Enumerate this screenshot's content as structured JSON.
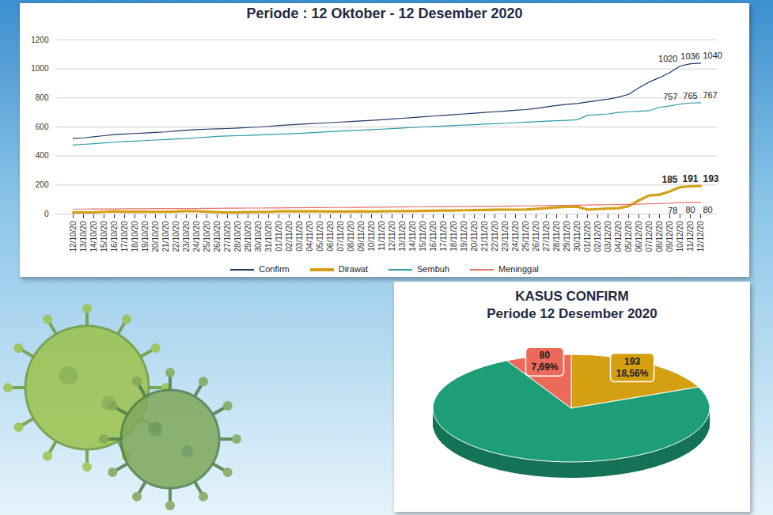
{
  "chart_data": [
    {
      "type": "line",
      "title": "Periode : 12 Oktober - 12 Desember 2020",
      "x": [
        "12/10/20",
        "13/10/20",
        "14/10/20",
        "15/10/20",
        "16/10/20",
        "17/10/20",
        "18/10/20",
        "19/10/20",
        "20/10/20",
        "21/10/20",
        "22/10/20",
        "23/10/20",
        "24/10/20",
        "25/10/20",
        "26/10/20",
        "27/10/20",
        "28/10/20",
        "29/10/20",
        "30/10/20",
        "31/10/20",
        "01/11/20",
        "02/11/20",
        "03/11/20",
        "04/11/20",
        "05/11/20",
        "06/11/20",
        "07/11/20",
        "08/11/20",
        "09/11/20",
        "10/11/20",
        "11/11/20",
        "12/11/20",
        "13/11/20",
        "14/11/20",
        "15/11/20",
        "16/11/20",
        "17/11/20",
        "18/11/20",
        "19/11/20",
        "20/11/20",
        "21/11/20",
        "22/11/20",
        "23/11/20",
        "24/11/20",
        "25/11/20",
        "26/11/20",
        "27/11/20",
        "28/11/20",
        "29/11/20",
        "30/11/20",
        "01/12/20",
        "02/12/20",
        "03/12/20",
        "04/12/20",
        "05/12/20",
        "06/12/20",
        "07/12/20",
        "08/12/20",
        "09/12/20",
        "10/12/20",
        "11/12/20",
        "12/12/20"
      ],
      "series": [
        {
          "name": "Confirm",
          "color": "#1f3864",
          "line_style": "solid",
          "values": [
            520,
            525,
            532,
            540,
            548,
            552,
            555,
            558,
            562,
            566,
            572,
            578,
            582,
            585,
            587,
            589,
            592,
            596,
            600,
            604,
            610,
            614,
            618,
            622,
            626,
            630,
            634,
            638,
            642,
            646,
            650,
            655,
            660,
            665,
            670,
            675,
            680,
            685,
            690,
            695,
            700,
            705,
            710,
            715,
            720,
            728,
            738,
            748,
            756,
            762,
            772,
            782,
            792,
            805,
            825,
            870,
            910,
            940,
            975,
            1020,
            1036,
            1040
          ]
        },
        {
          "name": "Dirawat",
          "color": "#d4a017",
          "line_style": "thick",
          "values": [
            11,
            11,
            12,
            15,
            18,
            16,
            16,
            16,
            15,
            16,
            17,
            20,
            19,
            16,
            13,
            11,
            12,
            13,
            14,
            14,
            18,
            18,
            19,
            18,
            18,
            17,
            17,
            17,
            18,
            17,
            18,
            19,
            20,
            20,
            21,
            22,
            24,
            24,
            26,
            27,
            28,
            29,
            30,
            30,
            31,
            35,
            40,
            46,
            50,
            51,
            30,
            34,
            38,
            40,
            54,
            94,
            128,
            133,
            155,
            185,
            191,
            193
          ]
        },
        {
          "name": "Sembuh",
          "color": "#2f9aa6",
          "line_style": "solid",
          "values": [
            475,
            480,
            485,
            490,
            495,
            500,
            503,
            506,
            510,
            513,
            517,
            520,
            525,
            530,
            535,
            538,
            540,
            542,
            545,
            548,
            550,
            553,
            556,
            560,
            564,
            568,
            572,
            575,
            578,
            582,
            585,
            588,
            592,
            596,
            600,
            603,
            606,
            610,
            613,
            616,
            620,
            623,
            626,
            630,
            633,
            636,
            640,
            643,
            646,
            650,
            680,
            685,
            690,
            700,
            705,
            708,
            712,
            735,
            745,
            757,
            765,
            767
          ]
        },
        {
          "name": "Meninggal",
          "color": "#e8736b",
          "line_style": "solid",
          "values": [
            34,
            34,
            35,
            35,
            35,
            36,
            36,
            36,
            37,
            37,
            38,
            38,
            38,
            39,
            39,
            40,
            40,
            41,
            41,
            42,
            42,
            43,
            43,
            44,
            44,
            45,
            45,
            46,
            46,
            47,
            47,
            48,
            48,
            49,
            49,
            50,
            50,
            51,
            51,
            52,
            52,
            53,
            54,
            55,
            56,
            57,
            58,
            59,
            60,
            61,
            62,
            63,
            64,
            65,
            66,
            68,
            70,
            72,
            75,
            78,
            80,
            80
          ]
        }
      ],
      "ylim": [
        0,
        1200
      ],
      "yticks": [
        0,
        200,
        400,
        600,
        800,
        1000,
        1200
      ],
      "grid": true,
      "legend": "bottom",
      "annotations": [
        {
          "series": "Confirm",
          "x": "10/12/20",
          "text": "1020"
        },
        {
          "series": "Confirm",
          "x": "11/12/20",
          "text": "1036"
        },
        {
          "series": "Confirm",
          "x": "12/12/20",
          "text": "1040"
        },
        {
          "series": "Sembuh",
          "x": "10/12/20",
          "text": "757"
        },
        {
          "series": "Sembuh",
          "x": "11/12/20",
          "text": "765"
        },
        {
          "series": "Sembuh",
          "x": "12/12/20",
          "text": "767"
        },
        {
          "series": "Dirawat",
          "x": "10/12/20",
          "text": "185"
        },
        {
          "series": "Dirawat",
          "x": "11/12/20",
          "text": "191"
        },
        {
          "series": "Dirawat",
          "x": "12/12/20",
          "text": "193"
        },
        {
          "series": "Meninggal",
          "x": "10/12/20",
          "text": "78"
        },
        {
          "series": "Meninggal",
          "x": "11/12/20",
          "text": "80"
        },
        {
          "series": "Meninggal",
          "x": "12/12/20",
          "text": "80"
        }
      ]
    },
    {
      "type": "pie",
      "title": "KASUS CONFIRM",
      "subtitle": "Periode 12 Desember 2020",
      "values": [
        193,
        767,
        80
      ],
      "colors": [
        "#d4a012",
        "#1e9e78",
        "#ec6a5a"
      ],
      "data_labels": true,
      "value_labels": [
        "193\n18,56%",
        null,
        "80\n7,69%"
      ]
    }
  ]
}
